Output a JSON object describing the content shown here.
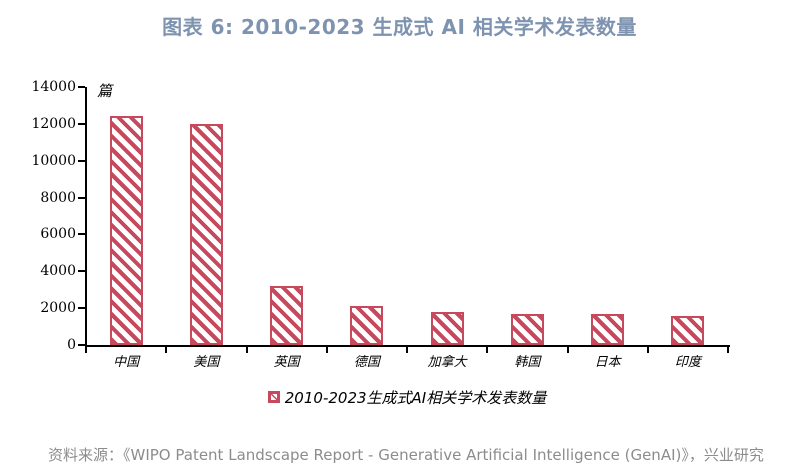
{
  "title": "图表 6: 2010-2023 生成式 AI 相关学术发表数量",
  "chart_data": {
    "type": "bar",
    "title": "图表 6: 2010-2023 生成式 AI 相关学术发表数量",
    "unit_label": "篇",
    "categories": [
      "中国",
      "美国",
      "英国",
      "德国",
      "加拿大",
      "韩国",
      "日本",
      "印度"
    ],
    "values": [
      12400,
      12000,
      3200,
      2100,
      1800,
      1700,
      1700,
      1600
    ],
    "legend": [
      "2010-2023生成式AI相关学术发表数量"
    ],
    "legend_position": "bottom-center",
    "xlabel": "",
    "ylabel": "篇",
    "ylim": [
      0,
      14000
    ],
    "ytick_step": 2000,
    "yticks": [
      0,
      2000,
      4000,
      6000,
      8000,
      10000,
      12000,
      14000
    ],
    "grid": false,
    "bar_style": "diagonal-hatch",
    "bar_color": "#C6495D"
  },
  "source": "资料来源：《WIPO Patent Landscape Report - Generative Artificial Intelligence (GenAI)》，兴业研究",
  "colors": {
    "title": "#7E93AF",
    "source": "#8C8C8C",
    "axis": "#000000",
    "bar": "#C6495D",
    "background": "#FFFFFF"
  }
}
